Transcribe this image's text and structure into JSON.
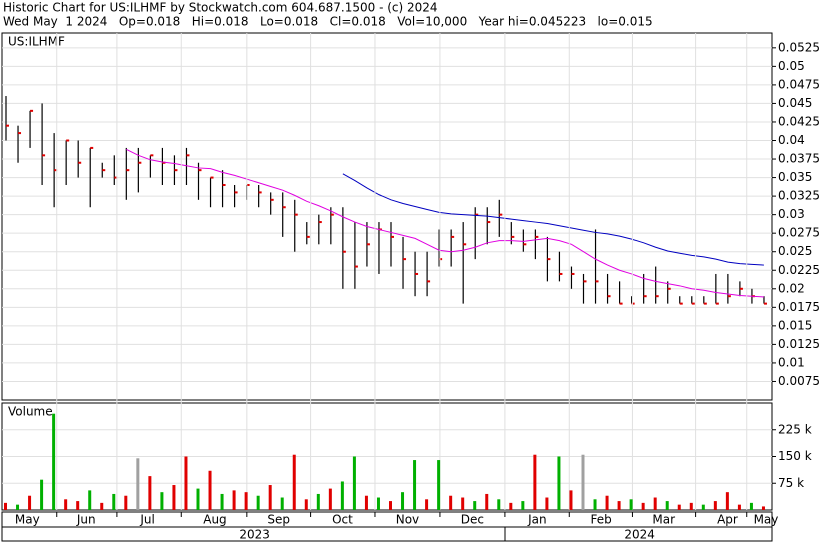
{
  "header": {
    "line1": "Historic Chart for US:ILHMF by Stockwatch.com 604.687.1500 - (c) 2024",
    "line2": "Wed May  1 2024   Op=0.018   Hi=0.018   Lo=0.018   Cl=0.018   Vol=10,000   Year hi=0.045223   lo=0.015"
  },
  "chart_data": [
    {
      "type": "hlc",
      "title": "US:ILHMF",
      "xlim": [
        0,
        64
      ],
      "ylim": [
        0.005,
        0.0545
      ],
      "yticks": [
        0.0525,
        0.05,
        0.0475,
        0.045,
        0.0425,
        0.04,
        0.0375,
        0.035,
        0.0325,
        0.03,
        0.0275,
        0.025,
        0.0225,
        0.02,
        0.0175,
        0.015,
        0.0125,
        0.01,
        0.0075
      ],
      "x": [
        0,
        1,
        2,
        3,
        4,
        5,
        6,
        7,
        8,
        9,
        10,
        11,
        12,
        13,
        14,
        15,
        16,
        17,
        18,
        19,
        20,
        21,
        22,
        23,
        24,
        25,
        26,
        27,
        28,
        29,
        30,
        31,
        32,
        33,
        34,
        35,
        36,
        37,
        38,
        39,
        40,
        41,
        42,
        43,
        44,
        45,
        46,
        47,
        48,
        49,
        50,
        51,
        52,
        53,
        54,
        55,
        56,
        57,
        58,
        59,
        60,
        61,
        62,
        63
      ],
      "high": [
        0.046,
        0.042,
        0.044,
        0.045,
        0.041,
        0.04,
        0.04,
        0.039,
        0.037,
        0.038,
        0.039,
        0.039,
        0.038,
        0.039,
        0.038,
        0.039,
        0.037,
        0.035,
        0.036,
        0.034,
        0.034,
        0.034,
        0.033,
        0.033,
        0.032,
        0.029,
        0.03,
        0.031,
        0.031,
        0.029,
        0.029,
        0.029,
        0.029,
        0.027,
        0.025,
        0.025,
        0.028,
        0.028,
        0.029,
        0.031,
        0.031,
        0.032,
        0.029,
        0.028,
        0.028,
        0.027,
        0.025,
        0.023,
        0.022,
        0.028,
        0.022,
        0.021,
        0.019,
        0.022,
        0.023,
        0.021,
        0.019,
        0.019,
        0.019,
        0.022,
        0.022,
        0.021,
        0.02,
        0.019
      ],
      "low": [
        0.04,
        0.037,
        0.039,
        0.034,
        0.031,
        0.034,
        0.035,
        0.031,
        0.035,
        0.034,
        0.032,
        0.033,
        0.035,
        0.034,
        0.034,
        0.034,
        0.032,
        0.031,
        0.031,
        0.031,
        0.032,
        0.031,
        0.03,
        0.027,
        0.025,
        0.026,
        0.026,
        0.026,
        0.02,
        0.02,
        0.023,
        0.022,
        0.023,
        0.02,
        0.019,
        0.019,
        0.023,
        0.023,
        0.018,
        0.024,
        0.026,
        0.027,
        0.026,
        0.025,
        0.024,
        0.021,
        0.021,
        0.02,
        0.018,
        0.018,
        0.018,
        0.018,
        0.018,
        0.018,
        0.018,
        0.018,
        0.018,
        0.018,
        0.018,
        0.018,
        0.018,
        0.019,
        0.018,
        0.018
      ],
      "close": [
        0.042,
        0.041,
        0.044,
        0.038,
        0.036,
        0.04,
        0.037,
        0.039,
        0.036,
        0.035,
        0.036,
        0.037,
        0.038,
        0.037,
        0.036,
        0.038,
        0.036,
        0.035,
        0.034,
        0.033,
        0.034,
        0.033,
        0.032,
        0.031,
        0.03,
        0.027,
        0.029,
        0.03,
        0.025,
        0.023,
        0.026,
        0.028,
        0.027,
        0.024,
        0.022,
        0.021,
        0.024,
        0.027,
        0.026,
        0.03,
        0.029,
        0.03,
        0.027,
        0.026,
        0.027,
        0.024,
        0.022,
        0.022,
        0.021,
        0.021,
        0.019,
        0.018,
        0.018,
        0.019,
        0.019,
        0.02,
        0.018,
        0.018,
        0.018,
        0.018,
        0.019,
        0.02,
        0.019,
        0.018
      ],
      "bar_color": "#000000",
      "close_color": "#e00000",
      "series": [
        {
          "color": "#e000e0",
          "values": [
            null,
            null,
            null,
            null,
            null,
            null,
            null,
            null,
            null,
            null,
            0.0388,
            0.038,
            0.0374,
            0.0371,
            0.0369,
            0.0366,
            0.0363,
            0.0362,
            0.0357,
            0.0353,
            0.0348,
            0.0343,
            0.0338,
            0.0333,
            0.0326,
            0.0318,
            0.0312,
            0.0305,
            0.0297,
            0.029,
            0.0284,
            0.028,
            0.0276,
            0.0272,
            0.0268,
            0.026,
            0.0252,
            0.025,
            0.0252,
            0.0256,
            0.0262,
            0.0265,
            0.0265,
            0.0264,
            0.0266,
            0.0268,
            0.0265,
            0.026,
            0.025,
            0.024,
            0.0232,
            0.0225,
            0.022,
            0.0214,
            0.021,
            0.0207,
            0.0204,
            0.02,
            0.0198,
            0.0195,
            0.0193,
            0.0191,
            0.019,
            0.0189
          ]
        },
        {
          "color": "#0000c0",
          "values": [
            null,
            null,
            null,
            null,
            null,
            null,
            null,
            null,
            null,
            null,
            null,
            null,
            null,
            null,
            null,
            null,
            null,
            null,
            null,
            null,
            null,
            null,
            null,
            null,
            null,
            null,
            null,
            null,
            0.0355,
            0.0346,
            0.0336,
            0.0327,
            0.032,
            0.0315,
            0.0311,
            0.0307,
            0.0303,
            0.0301,
            0.03,
            0.0299,
            0.0298,
            0.0296,
            0.0294,
            0.0292,
            0.029,
            0.0288,
            0.0285,
            0.0282,
            0.0279,
            0.0276,
            0.0274,
            0.0271,
            0.0267,
            0.0262,
            0.0256,
            0.0251,
            0.0248,
            0.0245,
            0.0243,
            0.024,
            0.0236,
            0.0234,
            0.0233,
            0.0232
          ]
        }
      ]
    },
    {
      "type": "volume",
      "title": "Volume",
      "xlim": [
        0,
        64
      ],
      "ylim": [
        0,
        300000
      ],
      "yticks": [
        {
          "value": 225000,
          "label": "225 k"
        },
        {
          "value": 150000,
          "label": "150 k"
        },
        {
          "value": 75000,
          "label": "75 k"
        }
      ],
      "xticks": [
        {
          "value": 2.1,
          "label": "May"
        },
        {
          "value": 7.0,
          "label": "Jun"
        },
        {
          "value": 12.1,
          "label": "Jul"
        },
        {
          "value": 17.7,
          "label": "Aug"
        },
        {
          "value": 23.0,
          "label": "Sep"
        },
        {
          "value": 28.3,
          "label": "Oct"
        },
        {
          "value": 33.7,
          "label": "Nov"
        },
        {
          "value": 39.1,
          "label": "Dec"
        },
        {
          "value": 44.5,
          "label": "Jan"
        },
        {
          "value": 49.8,
          "label": "Feb"
        },
        {
          "value": 55.0,
          "label": "Mar"
        },
        {
          "value": 60.3,
          "label": "Apr"
        },
        {
          "value": 63.5,
          "label": "May"
        }
      ],
      "year_ticks": [
        {
          "value": 21.0,
          "label": "2023"
        },
        {
          "value": 53.0,
          "label": "2024"
        }
      ],
      "x": [
        0,
        1,
        2,
        3,
        4,
        5,
        6,
        7,
        8,
        9,
        10,
        11,
        12,
        13,
        14,
        15,
        16,
        17,
        18,
        19,
        20,
        21,
        22,
        23,
        24,
        25,
        26,
        27,
        28,
        29,
        30,
        31,
        32,
        33,
        34,
        35,
        36,
        37,
        38,
        39,
        40,
        41,
        42,
        43,
        44,
        45,
        46,
        47,
        48,
        49,
        50,
        51,
        52,
        53,
        54,
        55,
        56,
        57,
        58,
        59,
        60,
        61,
        62,
        63
      ],
      "values": [
        20000,
        15000,
        40000,
        85000,
        270000,
        30000,
        25000,
        55000,
        20000,
        45000,
        40000,
        145000,
        95000,
        50000,
        70000,
        150000,
        60000,
        110000,
        45000,
        55000,
        50000,
        40000,
        70000,
        35000,
        155000,
        30000,
        45000,
        60000,
        80000,
        150000,
        40000,
        35000,
        25000,
        50000,
        140000,
        30000,
        140000,
        40000,
        35000,
        25000,
        45000,
        30000,
        20000,
        25000,
        155000,
        35000,
        150000,
        55000,
        155000,
        30000,
        40000,
        25000,
        30000,
        20000,
        35000,
        25000,
        15000,
        20000,
        15000,
        25000,
        50000,
        15000,
        20000,
        10000
      ],
      "colors": [
        "#e00000",
        "#00b000",
        "#e00000",
        "#00b000",
        "#00b000",
        "#e00000",
        "#e00000",
        "#00b000",
        "#e00000",
        "#00b000",
        "#e00000",
        "#a0a0a0",
        "#e00000",
        "#00b000",
        "#e00000",
        "#e00000",
        "#00b000",
        "#e00000",
        "#00b000",
        "#e00000",
        "#e00000",
        "#00b000",
        "#e00000",
        "#00b000",
        "#e00000",
        "#e00000",
        "#00b000",
        "#e00000",
        "#00b000",
        "#00b000",
        "#e00000",
        "#00b000",
        "#e00000",
        "#00b000",
        "#00b000",
        "#e00000",
        "#00b000",
        "#e00000",
        "#e00000",
        "#00b000",
        "#e00000",
        "#00b000",
        "#e00000",
        "#00b000",
        "#e00000",
        "#e00000",
        "#00b000",
        "#e00000",
        "#a0a0a0",
        "#00b000",
        "#e00000",
        "#e00000",
        "#00b000",
        "#e00000",
        "#e00000",
        "#00b000",
        "#e00000",
        "#e00000",
        "#00b000",
        "#e00000",
        "#e00000",
        "#e00000",
        "#00b000",
        "#e00000"
      ]
    }
  ]
}
